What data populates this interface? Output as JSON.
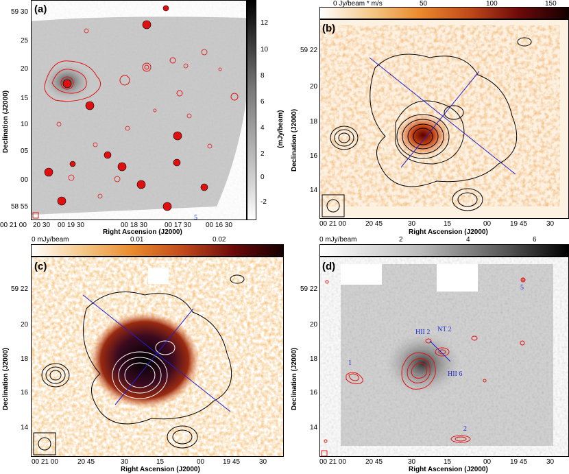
{
  "panels": {
    "a": {
      "label": "(a)",
      "xlabel": "Right Ascension (J2000)",
      "ylabel": "Declination (J2000)",
      "xticks": [
        "00 21 00",
        "20 30",
        "00 19 30",
        "00 18 30",
        "00 17 30",
        "00 16 30"
      ],
      "yticks": [
        "59 30",
        "25",
        "20",
        "15",
        "10",
        "05",
        "00",
        "58 55"
      ],
      "colorbar_label": "(mJy/beam)",
      "colorbar_ticks": [
        "12",
        "10",
        "8",
        "6",
        "4",
        "2",
        "0",
        "-2"
      ],
      "stray_label": "5"
    },
    "b": {
      "label": "(b)",
      "xlabel": "Right Ascension (J2000)",
      "ylabel": "Declination (J2000)",
      "xticks": [
        "00 21 00",
        "20 45",
        "30",
        "15",
        "00",
        "19 45",
        "30"
      ],
      "yticks": [
        "59 22",
        "20",
        "18",
        "16",
        "14"
      ],
      "colorbar_ticks": [
        "0 Jy/beam * m/s",
        "50",
        "100",
        "150"
      ]
    },
    "c": {
      "label": "(c)",
      "xlabel": "Right Ascension (J2000)",
      "ylabel": "Declination (J2000)",
      "xticks": [
        "00 21 00",
        "20 45",
        "30",
        "15",
        "00",
        "19 45",
        "30"
      ],
      "yticks": [
        "59 22",
        "20",
        "18",
        "16",
        "14"
      ],
      "colorbar_ticks": [
        "0 mJy/beam",
        "0.01",
        "0.02"
      ]
    },
    "d": {
      "label": "(d)",
      "xlabel": "Right Ascension (J2000)",
      "ylabel": "Declination (J2000)",
      "xticks": [
        "00 21 00",
        "20 45",
        "30",
        "15",
        "00",
        "19 45",
        "30"
      ],
      "yticks": [
        "59 22",
        "20",
        "18",
        "16",
        "14"
      ],
      "colorbar_ticks": [
        "0 mJy/beam",
        "2",
        "4",
        "6"
      ],
      "annotations": [
        "HII 2",
        "NT 2",
        "HII 6",
        "1",
        "2",
        "5"
      ]
    }
  },
  "colors": {
    "contour_red": "#e01010",
    "contour_black": "#000000",
    "line_blue": "#2020c8",
    "annotation_blue": "#1a2fd0"
  }
}
